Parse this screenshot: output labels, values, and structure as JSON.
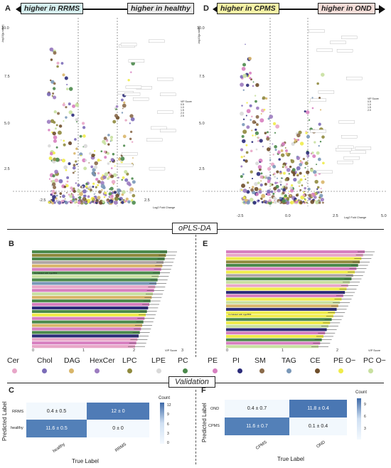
{
  "panels": {
    "A": {
      "letter": "A",
      "left_banner": "higher in RRMS",
      "right_banner": "higher in healthy",
      "left_banner_color": "#d6efef",
      "right_banner_color": "#e9e9e9",
      "ylabel": "-log10(p-value)",
      "xlabel": "Log2 Fold Change",
      "x_ticks": [
        "-2.5",
        "0.0",
        "2.5"
      ],
      "y_ticks": [
        "10.0",
        "7.5",
        "5.0",
        "2.5"
      ],
      "vip_title": "VIP Score",
      "vip_items": [
        "0.5",
        "1.0",
        "1.5",
        "2.0",
        "2.5"
      ]
    },
    "D": {
      "letter": "D",
      "left_banner": "higher in CPMS",
      "right_banner": "higher in OND",
      "left_banner_color": "#f6f3a6",
      "right_banner_color": "#f4ddd8",
      "ylabel": "-log10(p-value)",
      "xlabel": "Log2 Fold Change",
      "x_ticks": [
        "-2.5",
        "0.0",
        "2.5",
        "5.0"
      ],
      "y_ticks": [
        "10.0",
        "7.5",
        "5.0",
        "2.5"
      ],
      "vip_title": "VIP Score",
      "vip_items": [
        "0.5",
        "1.0",
        "1.5",
        "2.0"
      ]
    },
    "B": {
      "letter": "B",
      "x_ticks": [
        "0",
        "1",
        "2",
        "3"
      ],
      "xlabel": "VIP Score",
      "correlated_note": "Correlated with Age/BMI"
    },
    "E": {
      "letter": "E",
      "x_ticks": [
        "0",
        "1",
        "2"
      ],
      "xlabel": "VIP Score",
      "correlated_note": "Correlated with Age/BMI"
    },
    "C": {
      "letter": "C",
      "ylabel": "Predicted Label",
      "xlabel": "True Label",
      "row_labels": [
        "RRMS",
        "healthy"
      ],
      "col_labels": [
        "healthy",
        "RRMS"
      ],
      "cells": [
        [
          "0.4 ± 0.5",
          "12 ± 0"
        ],
        [
          "11.6 ± 0.5",
          "0 ± 0"
        ]
      ],
      "colorbar_title": "Count",
      "colorbar_ticks": [
        "12",
        "9",
        "6",
        "3",
        "0"
      ]
    },
    "F": {
      "letter": "F",
      "ylabel": "Predicted Label",
      "xlabel": "True Label",
      "row_labels": [
        "OND",
        "CPMS"
      ],
      "col_labels": [
        "CPMS",
        "OND"
      ],
      "cells": [
        [
          "0.4 ± 0.7",
          "11.8 ± 0.4"
        ],
        [
          "11.6 ± 0.7",
          "0.1 ± 0.4"
        ]
      ],
      "colorbar_title": "Count",
      "colorbar_ticks": [
        "9",
        "6",
        "3"
      ]
    }
  },
  "sections": {
    "oplsda": "oPLS-DA",
    "validation": "Validation"
  },
  "legend": [
    {
      "label": "Cer",
      "color": "#e8a6c8"
    },
    {
      "label": "Chol",
      "color": "#7b6cb8"
    },
    {
      "label": "DAG",
      "color": "#d9b66a"
    },
    {
      "label": "HexCer",
      "color": "#9c7cc0"
    },
    {
      "label": "LPC",
      "color": "#8f8a3e"
    },
    {
      "label": "LPE",
      "color": "#d9d9d9"
    },
    {
      "label": "PC",
      "color": "#4c8a4c"
    },
    {
      "label": "PE",
      "color": "#d77fc0"
    },
    {
      "label": "PI",
      "color": "#2c2c7a"
    },
    {
      "label": "SM",
      "color": "#8a6a4a"
    },
    {
      "label": "TAG",
      "color": "#7a98b8"
    },
    {
      "label": "CE",
      "color": "#6e4e2a"
    },
    {
      "label": "PE O−",
      "color": "#f0ec4a"
    },
    {
      "label": "PC O−",
      "color": "#c8e0a0"
    }
  ],
  "bar_colors": [
    "#4c8a4c",
    "#8f8a3e",
    "#4c8a4c",
    "#b0a6a6",
    "#d9b66a",
    "#d77fc0",
    "#4c8a4c",
    "#c8e0a0",
    "#4c8a4c",
    "#7a98b8",
    "#e8a6c8",
    "#d77fc0",
    "#c8e0a0",
    "#d9b66a",
    "#4c8a4c",
    "#d77fc0",
    "#2c2c7a",
    "#4c8a4c",
    "#f0ec4a",
    "#d77fc0",
    "#4c8a4c",
    "#d9b66a",
    "#d77fc0",
    "#4c8a4c",
    "#2c2c7a",
    "#e8a6c8",
    "#d77fc0",
    "#e8a6c8"
  ],
  "bar_colors_e": [
    "#d77fc0",
    "#e8a6c8",
    "#f0ec4a",
    "#8f8a3e",
    "#4c8a4c",
    "#d77fc0",
    "#f0ec4a",
    "#b0a6a6",
    "#4c8a4c",
    "#c8e0a0",
    "#e8a6c8",
    "#f0ec4a",
    "#2c2c7a",
    "#d77fc0",
    "#f0ec4a",
    "#c8e0a0",
    "#d9b66a",
    "#2c2c7a",
    "#f0ec4a",
    "#f0ec4a",
    "#4c8a4c",
    "#f0ec4a",
    "#c8e0a0",
    "#2c2c7a",
    "#d77fc0",
    "#f0ec4a",
    "#4c8a4c",
    "#d77fc0",
    "#c8e0a0"
  ]
}
